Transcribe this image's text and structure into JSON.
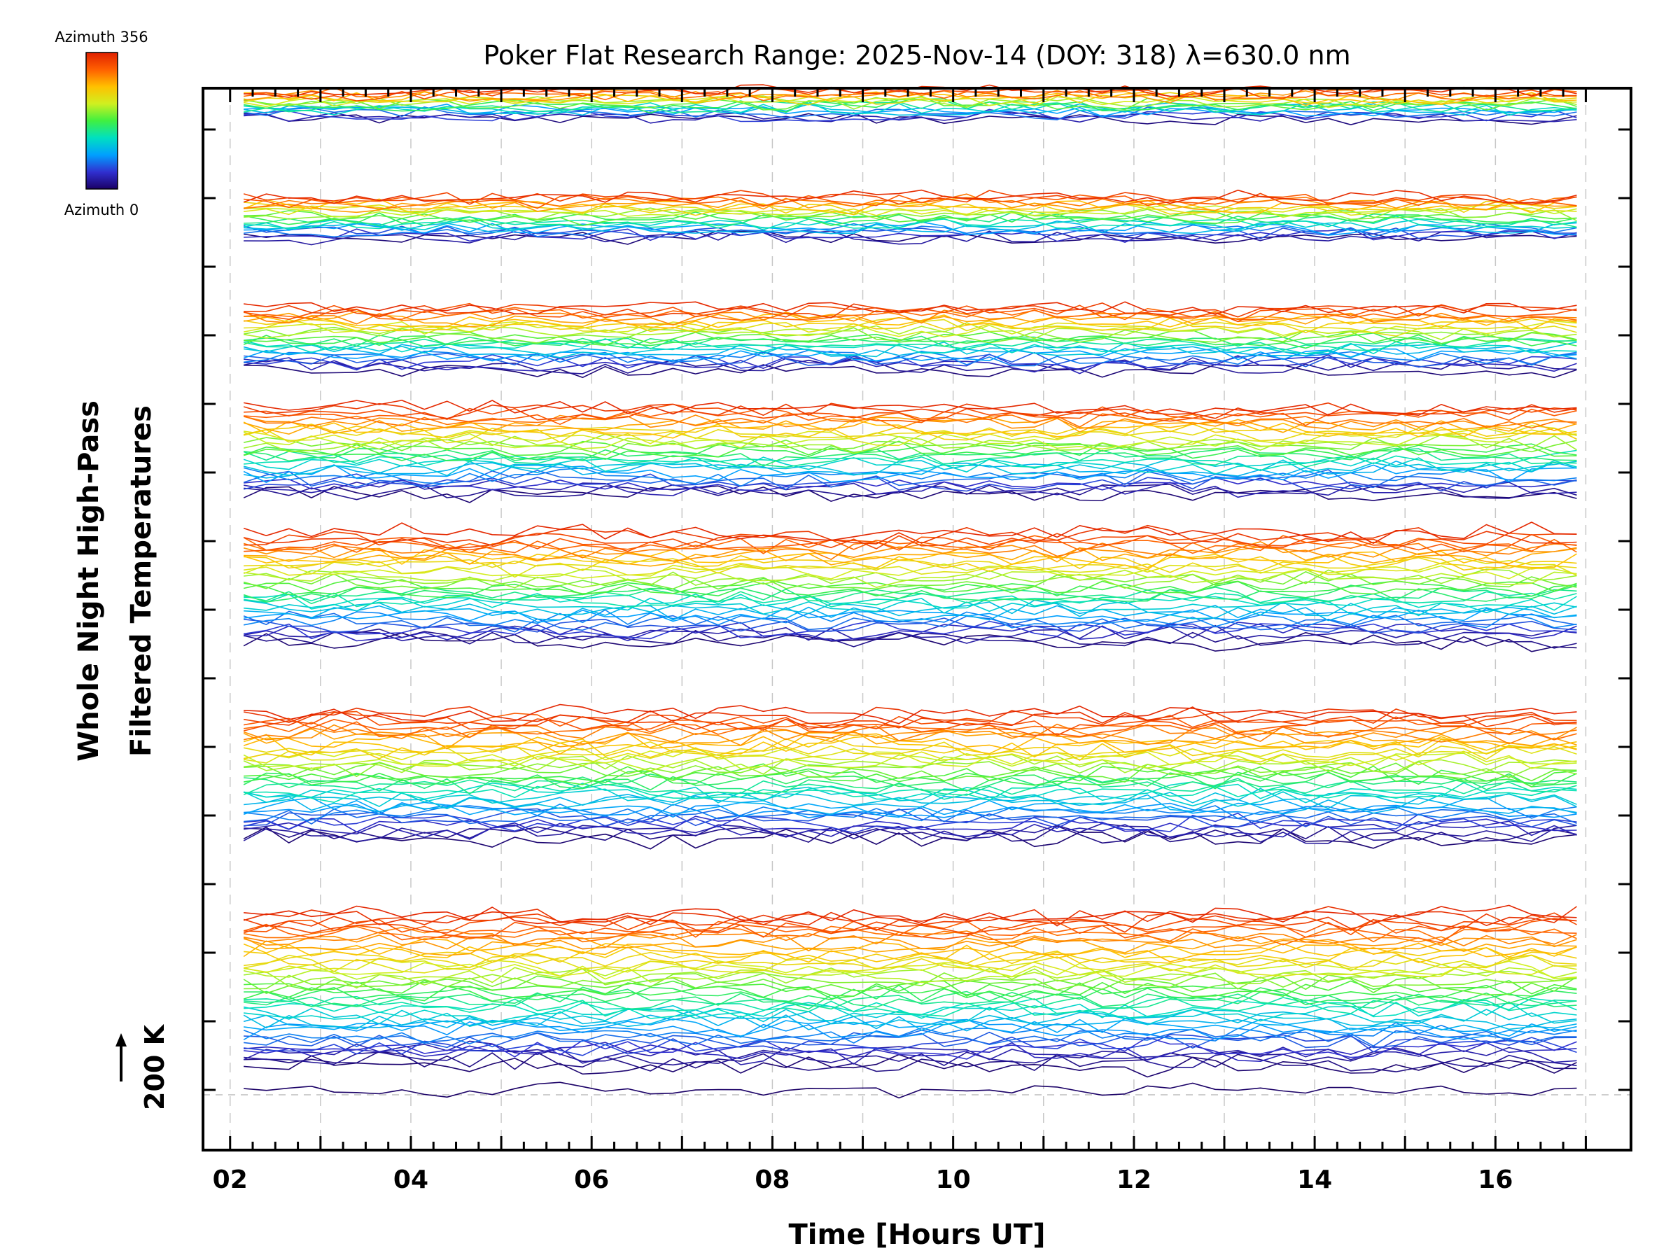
{
  "chart_data": {
    "type": "line",
    "title": "Poker Flat Research Range: 2025-Nov-14 (DOY: 318) λ=630.0 nm",
    "xlabel": "Time [Hours UT]",
    "ylabel_line1": "Whole Night High-Pass",
    "ylabel_line2": "Filtered Temperatures",
    "xlim": [
      1.7,
      17.5
    ],
    "x_ticks": [
      "02",
      "04",
      "06",
      "08",
      "10",
      "12",
      "14",
      "16"
    ],
    "x_tick_values": [
      2,
      4,
      6,
      8,
      10,
      12,
      14,
      16
    ],
    "x_start": 2.15,
    "x_end": 17.0,
    "x_step": 0.25,
    "scale_label": "200 K",
    "colorbar": {
      "top_label": "Azimuth 356",
      "bottom_label": "Azimuth 0",
      "min": 0,
      "max": 356,
      "colors": [
        "#1a0066",
        "#3030d0",
        "#00a0ff",
        "#00e0c0",
        "#40f040",
        "#d0f020",
        "#ffc000",
        "#ff6000",
        "#e02000"
      ]
    },
    "grid": "vertical dashed at x ticks",
    "series_count": 240
  }
}
